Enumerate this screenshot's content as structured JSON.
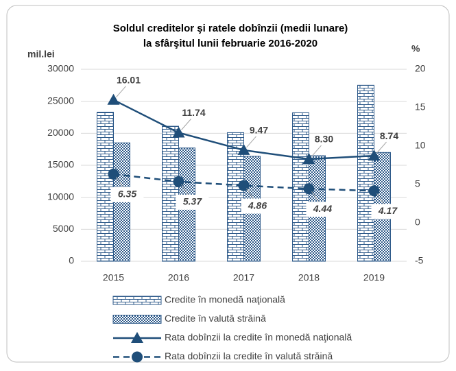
{
  "chart_data": {
    "type": "combo",
    "title": [
      "Soldul creditelor şi ratele dobînzii (medii lunare)",
      "la sfârşitul lunii februarie 2016-2020"
    ],
    "y_axis_label": "mil.lei",
    "y2_axis_label": "%",
    "categories": [
      "2015",
      "2016",
      "2017",
      "2018",
      "2019"
    ],
    "ylim": [
      0,
      30000
    ],
    "yticks": [
      0,
      5000,
      10000,
      15000,
      20000,
      25000,
      30000
    ],
    "y2lim": [
      -5,
      20
    ],
    "y2ticks": [
      -5,
      0,
      5,
      10,
      15,
      20
    ],
    "series": [
      {
        "name": "Credite în monedă naţională",
        "type": "bar",
        "pattern": "brick",
        "color": "#2e5a8a",
        "values": [
          23300,
          21100,
          20100,
          23200,
          27500
        ]
      },
      {
        "name": "Credite în valută străină",
        "type": "bar",
        "pattern": "checker",
        "color": "#2e5a8a",
        "values": [
          18500,
          17700,
          16400,
          16500,
          17000
        ]
      },
      {
        "name": "Rata dobînzii la credite în monedă naţională",
        "type": "line",
        "axis": "y2",
        "marker": "triangle",
        "dash": false,
        "color": "#1f4e79",
        "values": [
          16.01,
          11.74,
          9.47,
          8.3,
          8.74
        ],
        "value_labels": [
          "16.01",
          "11.74",
          "9.47",
          "8.30",
          "8.74"
        ]
      },
      {
        "name": "Rata dobînzii la credite în valută străină",
        "type": "line",
        "axis": "y2",
        "marker": "circle",
        "dash": true,
        "color": "#1f4e79",
        "values": [
          6.35,
          5.37,
          4.86,
          4.44,
          4.17
        ],
        "value_labels": [
          "6.35",
          "5.37",
          "4.86",
          "4.44",
          "4.17"
        ]
      }
    ]
  }
}
